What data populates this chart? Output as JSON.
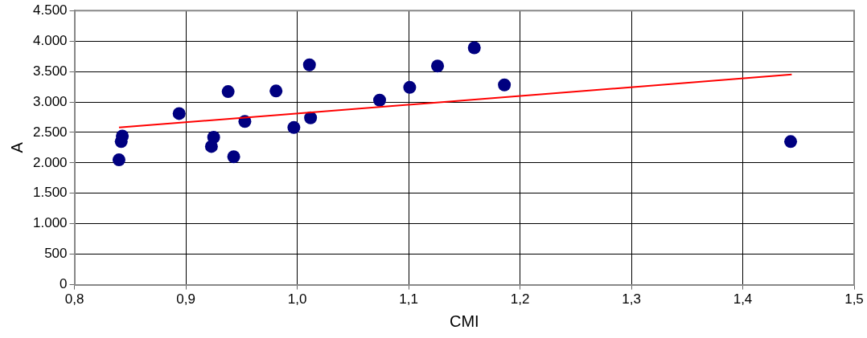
{
  "chart_data": {
    "type": "scatter",
    "xlabel": "CMI",
    "ylabel": "A",
    "xlim": [
      0.8,
      1.5
    ],
    "xticks": [
      {
        "value": 0.8,
        "label": "0,8"
      },
      {
        "value": 0.9,
        "label": "0,9"
      },
      {
        "value": 1.0,
        "label": "1,0"
      },
      {
        "value": 1.1,
        "label": "1,1"
      },
      {
        "value": 1.2,
        "label": "1,2"
      },
      {
        "value": 1.3,
        "label": "1,3"
      },
      {
        "value": 1.4,
        "label": "1,4"
      },
      {
        "value": 1.5,
        "label": "1,5"
      }
    ],
    "ylim": [
      0,
      4500
    ],
    "yticks": [
      0,
      500,
      {
        "value": 1000,
        "label": "1.000"
      },
      {
        "value": 1500,
        "label": "1.500"
      },
      {
        "value": 2000,
        "label": "2.000"
      },
      {
        "value": 2500,
        "label": "2.500"
      },
      {
        "value": 3000,
        "label": "3.000"
      },
      {
        "value": 3500,
        "label": "3.500"
      },
      {
        "value": 4000,
        "label": "4.000"
      },
      {
        "value": 4500,
        "label": "4.500"
      }
    ],
    "grid": true,
    "legend": false,
    "marker": "circle",
    "series": [
      {
        "color": "#000080",
        "x": [
          0.84,
          0.843,
          0.842,
          0.894,
          0.923,
          0.925,
          0.938,
          0.943,
          0.953,
          0.981,
          0.997,
          1.011,
          1.012,
          1.074,
          1.101,
          1.126,
          1.159,
          1.186,
          1.443
        ],
        "values": [
          2050,
          2440,
          2350,
          2810,
          2270,
          2420,
          3170,
          2100,
          2680,
          3180,
          2580,
          3610,
          2740,
          3030,
          3240,
          3590,
          3890,
          3280,
          2350
        ]
      },
      {
        "type": "line",
        "color": "#ff0000",
        "marker": "none",
        "x": [
          0.84,
          1.444
        ],
        "values": [
          2580,
          3450
        ]
      }
    ]
  }
}
